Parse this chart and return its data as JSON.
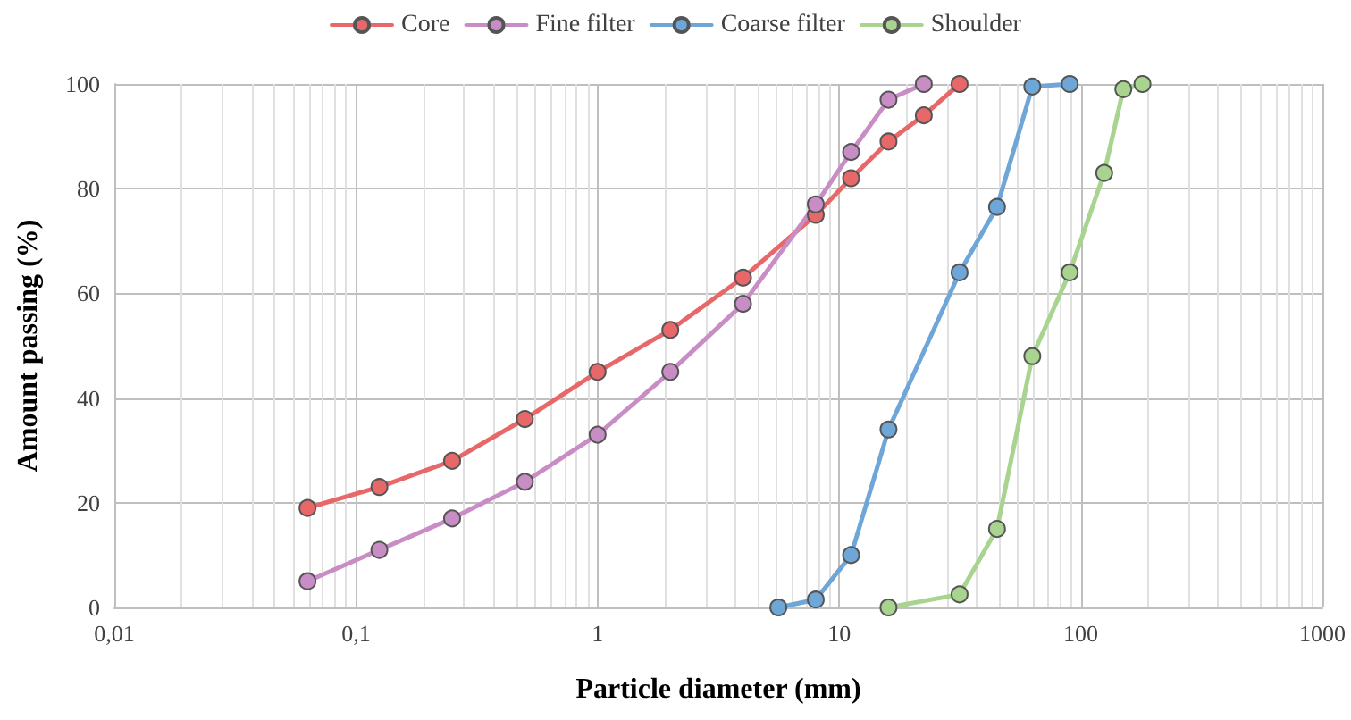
{
  "chart_data": {
    "type": "line",
    "xlabel": "Particle diameter (mm)",
    "ylabel": "Amount passing (%)",
    "log": "x",
    "grid": true,
    "legend": "top",
    "marker": "circle",
    "line_style": "solid",
    "xlim": [
      0.01,
      1000
    ],
    "xticks": [
      {
        "value": 0.01,
        "label": "0,01"
      },
      {
        "value": 0.1,
        "label": "0,1"
      },
      1,
      10,
      100,
      1000
    ],
    "ylim": [
      0,
      100
    ],
    "yticks": [
      0,
      20,
      40,
      60,
      80,
      100
    ],
    "series": [
      {
        "name": "Core",
        "color": "#e8686a",
        "x": [
          0.063,
          0.125,
          0.25,
          0.5,
          1,
          2,
          4,
          8,
          11.2,
          16,
          22.4,
          31.5
        ],
        "values": [
          19,
          23,
          28,
          36,
          45,
          53,
          63,
          75,
          82,
          89,
          94,
          100
        ]
      },
      {
        "name": "Fine filter",
        "color": "#c98dc6",
        "x": [
          0.063,
          0.125,
          0.25,
          0.5,
          1,
          2,
          4,
          8,
          11.2,
          16,
          22.4
        ],
        "values": [
          5,
          11,
          17,
          24,
          33,
          45,
          58,
          77,
          87,
          97,
          100
        ]
      },
      {
        "name": "Coarse filter",
        "color": "#6fa6d8",
        "x": [
          5.6,
          8,
          11.2,
          16,
          31.5,
          45,
          63,
          90
        ],
        "values": [
          0,
          1.5,
          10,
          34,
          64,
          76.5,
          99.5,
          100
        ]
      },
      {
        "name": "Shoulder",
        "color": "#a8d490",
        "x": [
          16,
          31.5,
          45,
          63,
          90,
          125,
          150,
          180
        ],
        "values": [
          0,
          2.5,
          15,
          48,
          64,
          83,
          99,
          100
        ]
      }
    ]
  }
}
